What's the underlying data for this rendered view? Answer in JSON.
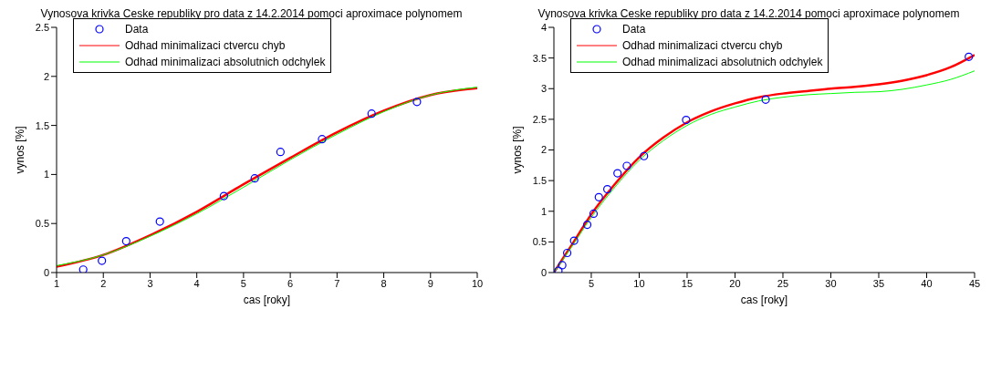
{
  "chart_data": [
    {
      "type": "line",
      "title": "Vynosova krivka Ceske republiky pro data z 14.2.2014 pomoci aproximace polynomem",
      "xlabel": "cas [roky]",
      "ylabel": "vynos [%]",
      "xlim": [
        1,
        10
      ],
      "xticks": [
        1,
        2,
        3,
        4,
        5,
        6,
        7,
        8,
        9,
        10
      ],
      "ylim": [
        0,
        2.5
      ],
      "yticks": [
        0,
        0.5,
        1,
        1.5,
        2,
        2.5
      ],
      "grid": false,
      "legend": "top left",
      "series": [
        {
          "name": "Data",
          "type": "scatter",
          "marker": "circle",
          "color": "#0000ff",
          "x": [
            1.57,
            1.97,
            2.49,
            3.21,
            4.58,
            5.24,
            5.79,
            6.68,
            7.74,
            8.71
          ],
          "values": [
            0.03,
            0.12,
            0.32,
            0.52,
            0.78,
            0.96,
            1.23,
            1.36,
            1.62,
            1.74
          ]
        },
        {
          "name": "Odhad minimalizaci ctvercu chyb",
          "type": "line",
          "color": "#ff0000",
          "x": [
            1,
            2,
            3,
            4,
            5,
            6,
            7,
            8,
            9,
            10
          ],
          "values": [
            0.06,
            0.18,
            0.38,
            0.62,
            0.9,
            1.17,
            1.43,
            1.65,
            1.81,
            1.88
          ]
        },
        {
          "name": "Odhad minimalizaci absolutnich odchylek",
          "type": "line",
          "color": "#00ff00",
          "x": [
            1,
            2,
            3,
            4,
            5,
            6,
            7,
            8,
            9,
            10
          ],
          "values": [
            0.07,
            0.18,
            0.37,
            0.6,
            0.87,
            1.15,
            1.41,
            1.64,
            1.81,
            1.89
          ]
        }
      ]
    },
    {
      "type": "line",
      "title": "Vynosova krivka Ceske republiky pro data z 14.2.2014 pomoci aproximace polynomem",
      "xlabel": "cas [roky]",
      "ylabel": "vynos [%]",
      "xlim": [
        1.1,
        45
      ],
      "xticks": [
        5,
        10,
        15,
        20,
        25,
        30,
        35,
        40,
        45
      ],
      "ylim": [
        0,
        4
      ],
      "yticks": [
        0,
        0.5,
        1,
        1.5,
        2,
        2.5,
        3,
        3.5,
        4
      ],
      "grid": false,
      "legend": "top left",
      "series": [
        {
          "name": "Data",
          "type": "scatter",
          "marker": "circle",
          "color": "#0000ff",
          "x": [
            1.57,
            1.97,
            2.49,
            3.21,
            4.58,
            5.24,
            5.79,
            6.68,
            7.74,
            8.71,
            10.5,
            14.9,
            23.2,
            44.4
          ],
          "values": [
            0.03,
            0.12,
            0.32,
            0.52,
            0.78,
            0.96,
            1.23,
            1.36,
            1.62,
            1.74,
            1.9,
            2.49,
            2.82,
            3.52
          ]
        },
        {
          "name": "Odhad minimalizaci ctvercu chyb",
          "type": "line",
          "color": "#ff0000",
          "x": [
            1.1,
            2,
            3,
            5,
            7.5,
            10,
            12.5,
            15,
            17.5,
            20,
            22.5,
            25,
            27.5,
            30,
            32.5,
            35,
            37.5,
            40,
            42.5,
            45
          ],
          "values": [
            0,
            0.22,
            0.46,
            0.95,
            1.45,
            1.88,
            2.2,
            2.45,
            2.63,
            2.76,
            2.86,
            2.92,
            2.96,
            3.0,
            3.03,
            3.07,
            3.13,
            3.22,
            3.35,
            3.55
          ]
        },
        {
          "name": "Odhad minimalizaci absolutnich odchylek",
          "type": "line",
          "color": "#00ff00",
          "x": [
            1.1,
            2,
            3,
            5,
            7.5,
            10,
            12.5,
            15,
            17.5,
            20,
            22.5,
            25,
            27.5,
            30,
            32.5,
            35,
            37.5,
            40,
            42.5,
            45
          ],
          "values": [
            0,
            0.2,
            0.43,
            0.9,
            1.4,
            1.83,
            2.15,
            2.4,
            2.58,
            2.7,
            2.8,
            2.86,
            2.9,
            2.92,
            2.94,
            2.95,
            2.99,
            3.06,
            3.15,
            3.29
          ]
        }
      ]
    }
  ]
}
